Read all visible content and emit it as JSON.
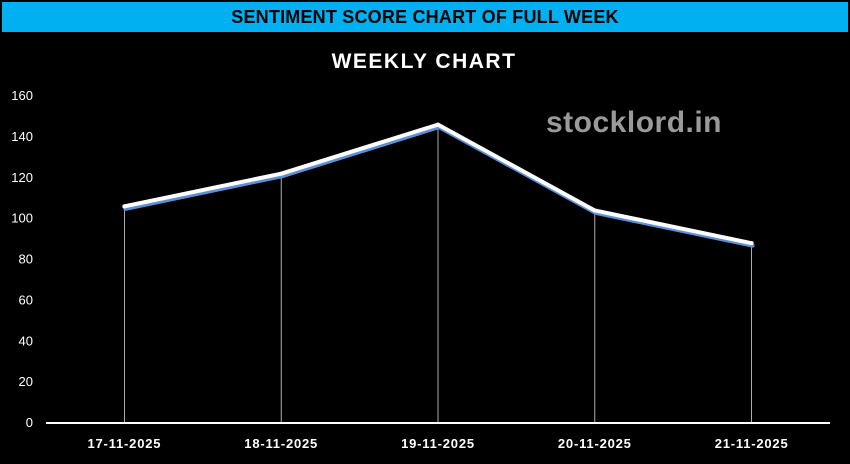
{
  "header": {
    "banner_title": "SENTIMENT SCORE CHART OF FULL WEEK",
    "banner_color": "#00b0f0"
  },
  "watermark": "stocklord.in",
  "chart_data": {
    "type": "line",
    "title": "WEEKLY CHART",
    "xlabel": "",
    "ylabel": "",
    "categories": [
      "17-11-2025",
      "18-11-2025",
      "19-11-2025",
      "20-11-2025",
      "21-11-2025"
    ],
    "series": [
      {
        "values": [
          106,
          122,
          146,
          104,
          88
        ],
        "color": "#ffffff",
        "shadow_color": "#5b8fd6"
      }
    ],
    "ylim": [
      0,
      160
    ],
    "yticks": [
      0,
      20,
      40,
      60,
      80,
      100,
      120,
      140,
      160
    ],
    "grid": false,
    "drop_lines": true,
    "background": "#000000",
    "legend": "none"
  }
}
